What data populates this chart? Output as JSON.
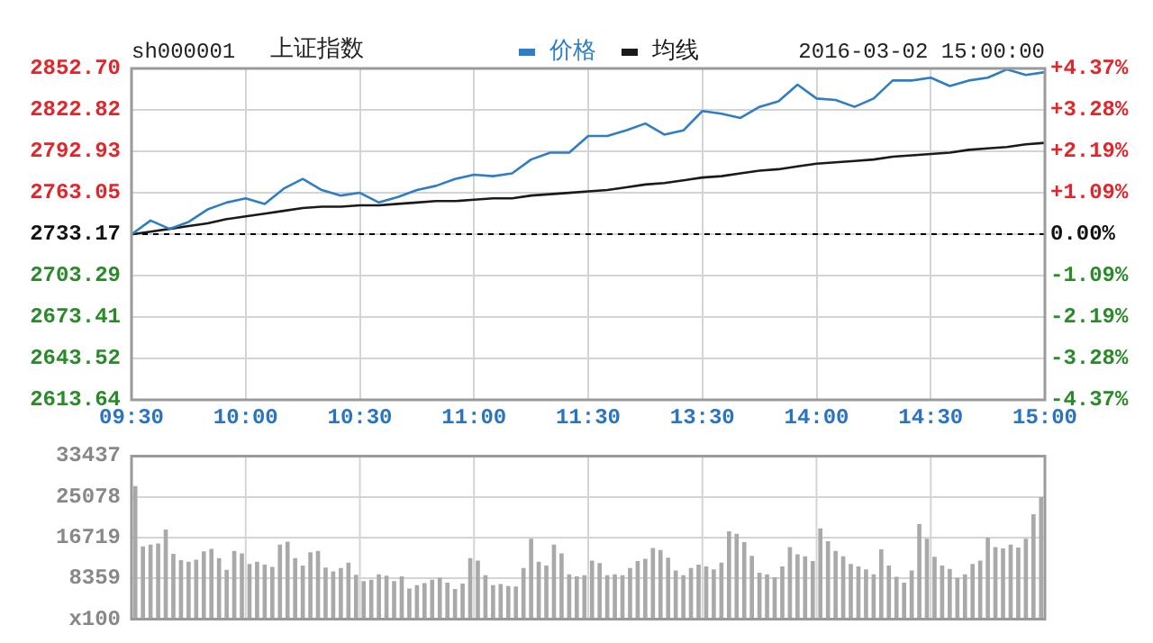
{
  "chart_data": [
    {
      "type": "line",
      "title": "上证指数",
      "subtitle": "sh000001",
      "annotations": [
        "2016-03-02 15:00:00"
      ],
      "legend": "top",
      "grid": true,
      "categories": [
        "09:30",
        null,
        null,
        null,
        null,
        null,
        "10:00",
        null,
        null,
        null,
        null,
        null,
        "10:30",
        null,
        null,
        null,
        null,
        null,
        "11:00",
        null,
        null,
        null,
        null,
        null,
        "11:30",
        null,
        null,
        null,
        null,
        null,
        "13:30",
        null,
        null,
        null,
        null,
        null,
        "14:00",
        null,
        null,
        null,
        null,
        null,
        "14:30",
        null,
        null,
        null,
        null,
        null,
        "15:00"
      ],
      "series": [
        {
          "name": "价格",
          "color": "#2f7dc4",
          "values": [
            2733,
            2743,
            2737,
            2742,
            2751,
            2756,
            2759,
            2755,
            2766,
            2773,
            2765,
            2761,
            2763,
            2756,
            2760,
            2765,
            2768,
            2773,
            2776,
            2775,
            2777,
            2787,
            2792,
            2792,
            2804,
            2804,
            2808,
            2813,
            2805,
            2808,
            2822,
            2820,
            2817,
            2825,
            2829,
            2841,
            2831,
            2830,
            2825,
            2831,
            2844,
            2844,
            2846,
            2840,
            2844,
            2846,
            2852,
            2848,
            2850
          ]
        },
        {
          "name": "均线",
          "color": "#1a1a1a",
          "values": [
            2733,
            2735,
            2737,
            2739,
            2741,
            2744,
            2746,
            2748,
            2750,
            2752,
            2753,
            2753,
            2754,
            2754,
            2755,
            2756,
            2757,
            2757,
            2758,
            2759,
            2759,
            2761,
            2762,
            2763,
            2764,
            2765,
            2767,
            2769,
            2770,
            2772,
            2774,
            2775,
            2777,
            2779,
            2780,
            2782,
            2784,
            2785,
            2786,
            2787,
            2789,
            2790,
            2791,
            2792,
            2794,
            2795,
            2796,
            2798,
            2799
          ]
        }
      ],
      "ylim": [
        2613.64,
        2852.7
      ],
      "yticks": [
        2613.64,
        2643.52,
        2673.41,
        2703.29,
        2733.17,
        2763.05,
        2792.93,
        2822.82,
        {
          "value": 2852.7,
          "label": "2852.70"
        }
      ],
      "y2lim": [
        -4.37,
        4.37
      ],
      "y2ticks": [
        {
          "value": -4.37,
          "label": "-4.37%"
        },
        {
          "value": -3.28,
          "label": "-3.28%"
        },
        {
          "value": -2.19,
          "label": "-2.19%"
        },
        {
          "value": -1.09,
          "label": "-1.09%"
        },
        {
          "value": 0,
          "label": "0.00%"
        },
        {
          "value": 1.09,
          "label": "+1.09%"
        },
        {
          "value": 2.19,
          "label": "+2.19%"
        },
        {
          "value": 3.28,
          "label": "+3.28%"
        },
        {
          "value": 4.37,
          "label": "+4.37%"
        }
      ],
      "ref_lines": [
        {
          "axis": "y",
          "value": 2733.17,
          "color": "#000000",
          "line_style": "dashed"
        }
      ]
    },
    {
      "type": "bar",
      "grid": true,
      "tick_labels": "y",
      "color": "#a9a9a9",
      "categories": [
        null,
        null,
        null,
        null,
        null,
        null,
        null,
        null,
        null,
        null,
        null,
        null,
        null,
        null,
        null,
        null,
        null,
        null,
        null,
        null,
        null,
        null,
        null,
        null,
        null,
        null,
        null,
        null,
        null,
        null,
        null,
        null,
        null,
        null,
        null,
        null,
        null,
        null,
        null,
        null,
        null,
        null,
        null,
        null,
        null,
        null,
        null,
        null,
        null,
        null,
        null,
        null,
        null,
        null,
        null,
        null,
        null,
        null,
        null,
        null,
        null,
        null,
        null,
        null,
        null,
        null,
        null,
        null,
        null,
        null,
        null,
        null,
        null,
        null,
        null,
        null,
        null,
        null,
        null,
        null,
        null,
        null,
        null,
        null,
        null,
        null,
        null,
        null,
        null,
        null,
        null,
        null,
        null,
        null,
        null,
        null,
        null,
        null,
        null,
        null,
        null,
        null,
        null,
        null,
        null,
        null,
        null,
        null,
        null,
        null,
        null,
        null,
        null,
        null,
        null,
        null,
        null,
        null,
        null,
        null
      ],
      "values": [
        27300,
        14900,
        15300,
        15500,
        18400,
        13400,
        12100,
        11800,
        12200,
        13900,
        14400,
        12500,
        10100,
        14000,
        13500,
        11300,
        11800,
        11200,
        10700,
        15300,
        15900,
        12500,
        11000,
        13700,
        14000,
        10600,
        9800,
        10500,
        11600,
        9100,
        7800,
        8100,
        9200,
        8900,
        7800,
        8800,
        6300,
        7000,
        7400,
        8100,
        8500,
        7500,
        6200,
        7300,
        12500,
        12000,
        9000,
        7000,
        7200,
        6800,
        6700,
        10500,
        16500,
        11800,
        11000,
        15300,
        13500,
        9200,
        8800,
        9000,
        12000,
        11500,
        9000,
        9200,
        9000,
        10500,
        11900,
        12400,
        14600,
        14200,
        12600,
        10000,
        9000,
        10500,
        11200,
        10800,
        10200,
        11600,
        18000,
        17500,
        15800,
        13000,
        9500,
        9200,
        8600,
        10800,
        14800,
        13300,
        12900,
        11900,
        18600,
        16000,
        14000,
        12900,
        11300,
        10800,
        10200,
        9200,
        14300,
        11000,
        8700,
        7500,
        10000,
        19500,
        16500,
        12800,
        11000,
        10300,
        8500,
        9200,
        11300,
        12000,
        16700,
        14800,
        14500,
        15300,
        14700,
        16500,
        21500,
        25000
      ],
      "ylim": [
        0,
        33437
      ],
      "yticks": [
        {
          "value": 0,
          "label": "x100"
        },
        8359,
        16719,
        25078,
        33437
      ]
    }
  ]
}
